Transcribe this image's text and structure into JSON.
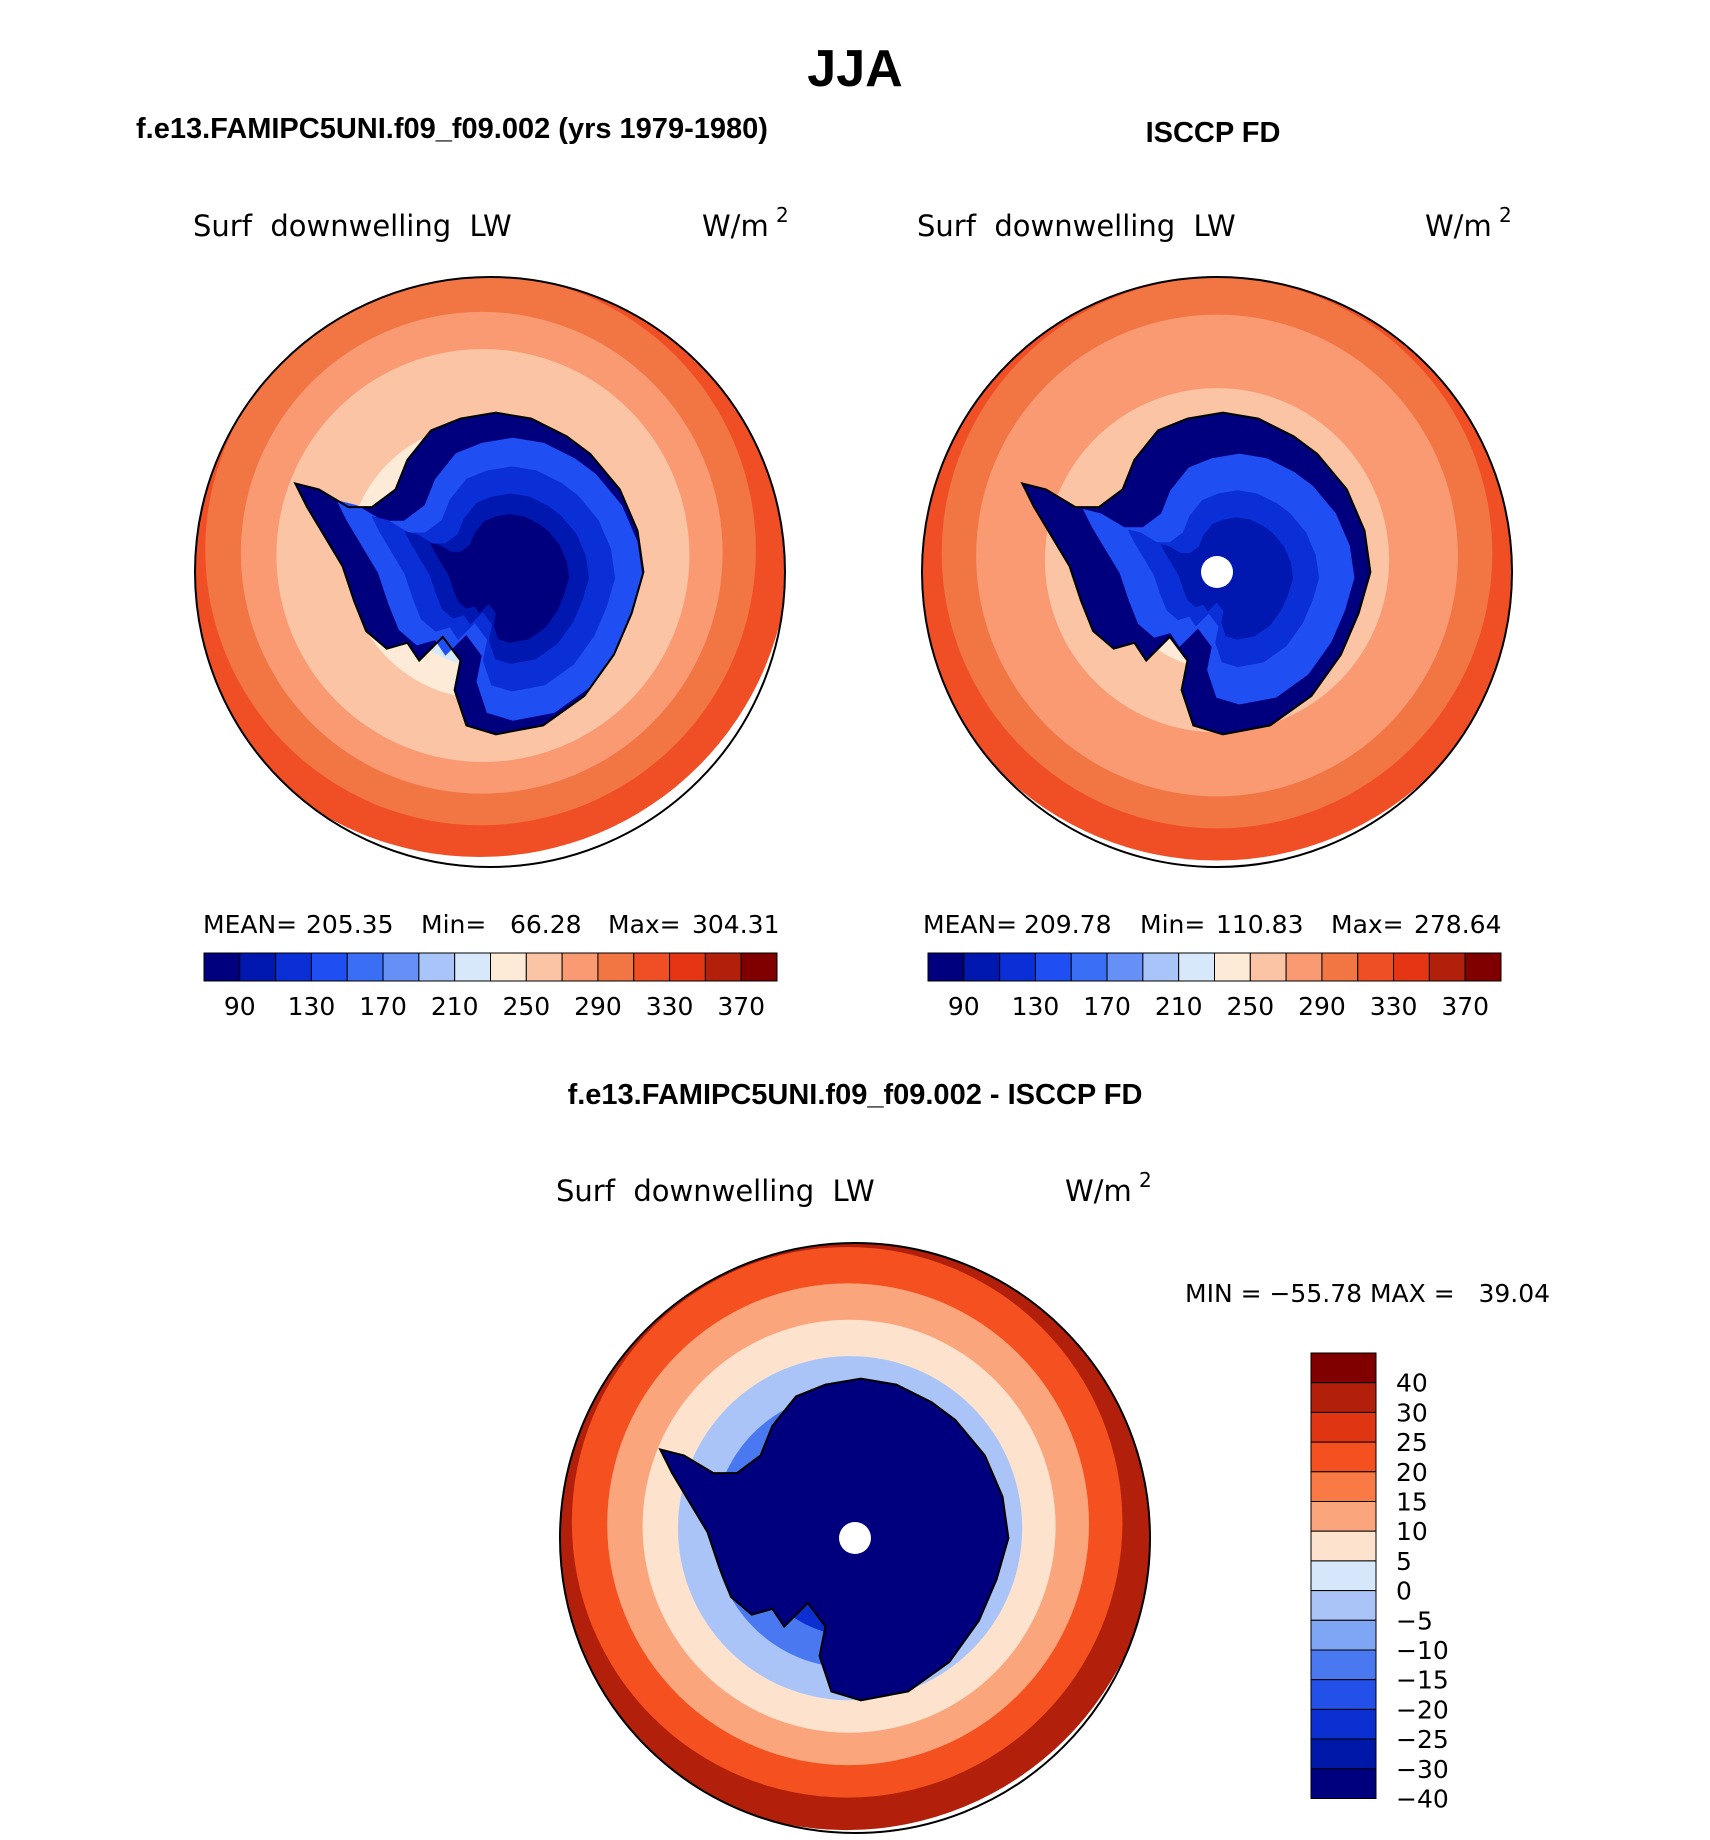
{
  "title": "JJA",
  "panels": [
    {
      "id": "model",
      "case_title": "f.e13.FAMIPC5UNI.f09_f09.002 (yrs 1979-1980)",
      "variable": "Surf  downwelling  LW",
      "units": "W/m",
      "units_sup": "2",
      "stats": {
        "mean_label": "MEAN=",
        "mean": "205.35",
        "min_label": "Min=",
        "min": "66.28",
        "max_label": "Max=",
        "max": "304.31"
      },
      "field": {
        "land": 1,
        "ocean_low": 160,
        "ocean_high": 300,
        "offset": [
          -0.06,
          0.14
        ],
        "bands": [
          [
            0.12,
            3
          ],
          [
            0.3,
            2
          ],
          [
            0.47,
            1
          ],
          [
            0.6,
            0
          ]
        ],
        "pole_hole": false
      }
    },
    {
      "id": "obs",
      "case_title": "ISCCP FD",
      "variable": "Surf  downwelling  LW",
      "units": "W/m",
      "units_sup": "2",
      "stats": {
        "mean_label": "MEAN=",
        "mean": "209.78",
        "min_label": "Min=",
        "min": "110.83",
        "max_label": "Max=",
        "max": "278.64"
      },
      "field": {
        "land": 3,
        "ocean_low": 195,
        "ocean_high": 290,
        "offset": [
          0.0,
          0.12
        ],
        "bands": [
          [
            0.22,
            3
          ],
          [
            0.45,
            2
          ],
          [
            0.62,
            1
          ]
        ],
        "pole_hole": true
      }
    }
  ],
  "colorbar": {
    "labels": [
      "90",
      "130",
      "170",
      "210",
      "250",
      "290",
      "330",
      "370"
    ],
    "colors": [
      "#00007f",
      "#0017b0",
      "#0a2fd6",
      "#1f4ff2",
      "#3a6ef5",
      "#6690f5",
      "#a8c4f8",
      "#d8e8fb",
      "#fdebd8",
      "#fbc4a4",
      "#f99a72",
      "#f27544",
      "#f04f26",
      "#e53514",
      "#b21f0a",
      "#800000"
    ]
  },
  "difference": {
    "title": "f.e13.FAMIPC5UNI.f09_f09.002 - ISCCP FD",
    "variable": "Surf  downwelling  LW",
    "units": "W/m",
    "units_sup": "2",
    "minmax": "MIN = −55.78 MAX =   39.04",
    "colorbar_labels": [
      "40",
      "30",
      "25",
      "20",
      "15",
      "10",
      "5",
      "0",
      "−5",
      "−10",
      "−15",
      "−20",
      "−25",
      "−30",
      "−40"
    ],
    "colorbar_colors": [
      "#800000",
      "#b21f0a",
      "#e03512",
      "#f5501f",
      "#f97a45",
      "#fba57d",
      "#fde3ce",
      "#d6e6fb",
      "#aac4f8",
      "#7ea6f5",
      "#4a78f0",
      "#2350e8",
      "#0c2fd2",
      "#0018a8",
      "#00007f"
    ],
    "field": {
      "land": -40,
      "ocean_low": -40,
      "ocean_high": 28,
      "offset": [
        -0.05,
        0.1
      ],
      "pole_hole": true
    }
  },
  "chart_data": [
    {
      "type": "map",
      "title": "f.e13.FAMIPC5UNI.f09_f09.002 (yrs 1979-1980)",
      "variable": "Surf downwelling LW",
      "units": "W/m2",
      "projection": "south polar stereographic",
      "mean": 205.35,
      "min": 66.28,
      "max": 304.31,
      "colorbar_ticks": [
        90,
        130,
        170,
        210,
        250,
        290,
        330,
        370
      ]
    },
    {
      "type": "map",
      "title": "ISCCP FD",
      "variable": "Surf downwelling LW",
      "units": "W/m2",
      "projection": "south polar stereographic",
      "mean": 209.78,
      "min": 110.83,
      "max": 278.64,
      "colorbar_ticks": [
        90,
        130,
        170,
        210,
        250,
        290,
        330,
        370
      ]
    },
    {
      "type": "map",
      "title": "f.e13.FAMIPC5UNI.f09_f09.002 - ISCCP FD",
      "variable": "Surf downwelling LW",
      "units": "W/m2",
      "projection": "south polar stereographic",
      "min": -55.78,
      "max": 39.04,
      "colorbar_ticks": [
        40,
        30,
        25,
        20,
        15,
        10,
        5,
        0,
        -5,
        -10,
        -15,
        -20,
        -25,
        -30,
        -40
      ]
    }
  ]
}
